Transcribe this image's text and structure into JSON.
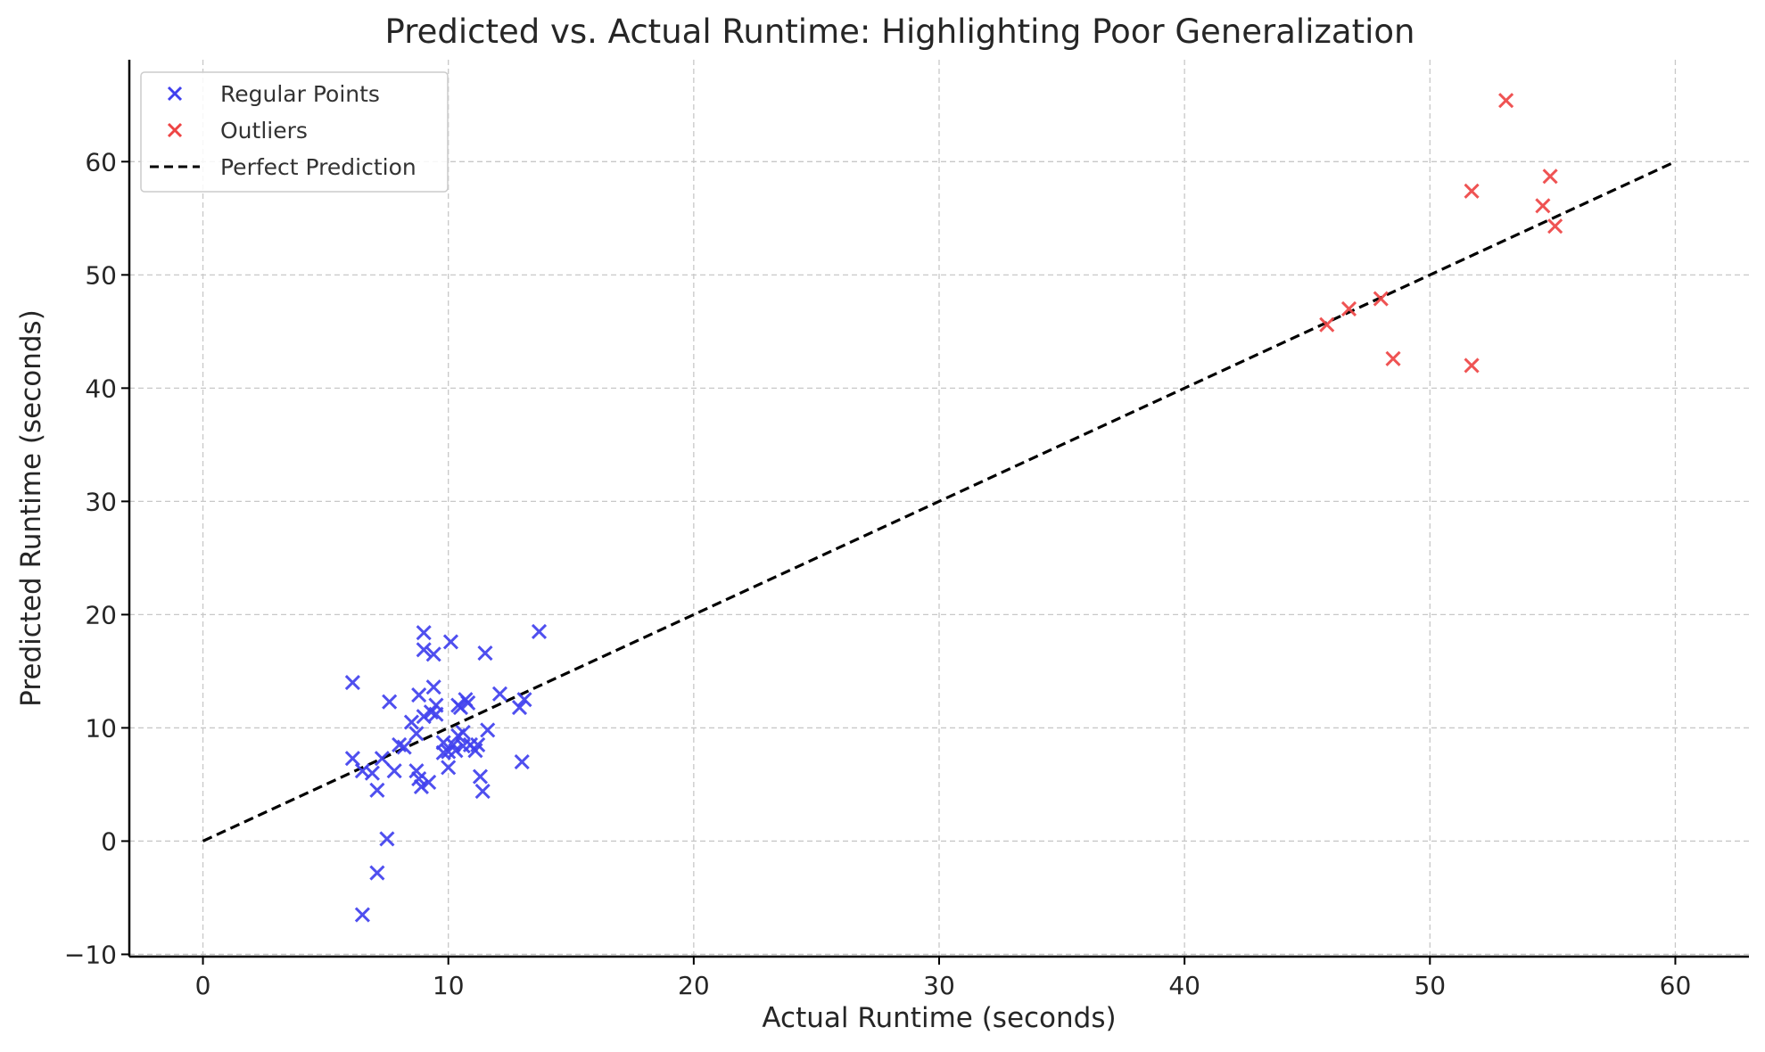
{
  "chart_data": {
    "type": "scatter",
    "title": "Predicted vs. Actual Runtime: Highlighting Poor Generalization",
    "xlabel": "Actual Runtime (seconds)",
    "ylabel": "Predicted Runtime (seconds)",
    "xlim": [
      -3,
      63
    ],
    "ylim": [
      -10.2,
      69
    ],
    "xticks": [
      0,
      10,
      20,
      30,
      40,
      50,
      60
    ],
    "yticks": [
      -10,
      0,
      10,
      20,
      30,
      40,
      50,
      60
    ],
    "xtick_labels": [
      "0",
      "10",
      "20",
      "30",
      "40",
      "50",
      "60"
    ],
    "ytick_labels": [
      "−10",
      "0",
      "10",
      "20",
      "30",
      "40",
      "50",
      "60"
    ],
    "grid": true,
    "legend_position": "top-left",
    "series": [
      {
        "name": "Regular Points",
        "type": "scatter",
        "marker": "x",
        "color": "#4040ee",
        "points": [
          [
            6.1,
            14.0
          ],
          [
            6.1,
            7.3
          ],
          [
            6.5,
            6.2
          ],
          [
            6.5,
            -6.5
          ],
          [
            6.9,
            6.0
          ],
          [
            7.1,
            4.5
          ],
          [
            7.1,
            -2.8
          ],
          [
            7.3,
            7.3
          ],
          [
            7.5,
            0.2
          ],
          [
            7.6,
            12.3
          ],
          [
            7.8,
            6.2
          ],
          [
            8.0,
            8.5
          ],
          [
            8.2,
            8.3
          ],
          [
            8.5,
            10.5
          ],
          [
            8.7,
            9.5
          ],
          [
            8.7,
            6.2
          ],
          [
            8.8,
            12.9
          ],
          [
            8.8,
            5.5
          ],
          [
            8.9,
            4.8
          ],
          [
            9.0,
            18.4
          ],
          [
            9.0,
            16.9
          ],
          [
            9.0,
            11.0
          ],
          [
            9.2,
            5.2
          ],
          [
            9.3,
            11.4
          ],
          [
            9.4,
            16.5
          ],
          [
            9.4,
            13.6
          ],
          [
            9.5,
            12.0
          ],
          [
            9.5,
            11.2
          ],
          [
            9.8,
            8.7
          ],
          [
            9.8,
            7.8
          ],
          [
            10.0,
            7.9
          ],
          [
            10.0,
            6.5
          ],
          [
            10.1,
            17.6
          ],
          [
            10.2,
            8.5
          ],
          [
            10.3,
            8.0
          ],
          [
            10.4,
            12.0
          ],
          [
            10.4,
            9.3
          ],
          [
            10.5,
            11.8
          ],
          [
            10.6,
            9.6
          ],
          [
            10.6,
            8.4
          ],
          [
            10.7,
            12.5
          ],
          [
            10.8,
            12.2
          ],
          [
            10.9,
            8.5
          ],
          [
            11.1,
            8.0
          ],
          [
            11.2,
            8.5
          ],
          [
            11.3,
            5.7
          ],
          [
            11.4,
            4.4
          ],
          [
            11.5,
            16.6
          ],
          [
            11.6,
            9.8
          ],
          [
            12.1,
            13.0
          ],
          [
            12.9,
            11.8
          ],
          [
            13.0,
            7.0
          ],
          [
            13.1,
            12.5
          ],
          [
            13.7,
            18.5
          ]
        ]
      },
      {
        "name": "Outliers",
        "type": "scatter",
        "marker": "x",
        "color": "#ee4444",
        "points": [
          [
            45.8,
            45.6
          ],
          [
            46.7,
            47.0
          ],
          [
            48.0,
            47.9
          ],
          [
            48.5,
            42.6
          ],
          [
            51.7,
            57.4
          ],
          [
            51.7,
            42.0
          ],
          [
            53.1,
            65.4
          ],
          [
            54.6,
            56.1
          ],
          [
            54.9,
            58.7
          ],
          [
            55.1,
            54.3
          ]
        ]
      },
      {
        "name": "Perfect Prediction",
        "type": "line",
        "style": "dashed",
        "color": "#000000",
        "x": [
          0,
          60
        ],
        "y": [
          0,
          60
        ]
      }
    ]
  }
}
